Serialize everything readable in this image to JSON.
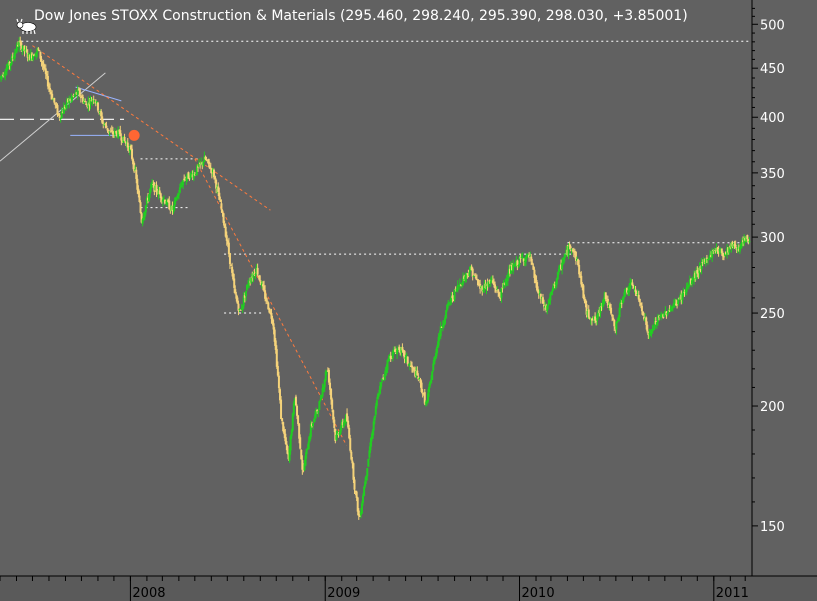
{
  "chart_data": {
    "type": "candlestick",
    "title": "Dow Jones STOXX Construction & Materials (295.460, 298.240, 295.390, 298.030, +3.85001)",
    "y_scale": "log",
    "ylim": [
      133,
      530
    ],
    "y_ticks": [
      150,
      200,
      250,
      300,
      350,
      400,
      450,
      500
    ],
    "x_range": [
      "2007-05-01",
      "2011-03-10"
    ],
    "x_ticks": [
      {
        "label": "2008",
        "date": "2008-01-01"
      },
      {
        "label": "2009",
        "date": "2009-01-01"
      },
      {
        "label": "2010",
        "date": "2010-01-01"
      },
      {
        "label": "2011",
        "date": "2011-01-01"
      }
    ],
    "colors": {
      "up": "#22cc22",
      "down": "#f5d37a",
      "background": "#616161"
    },
    "price_path": [
      [
        "2007-05-01",
        440
      ],
      [
        "2007-05-20",
        455
      ],
      [
        "2007-06-05",
        478
      ],
      [
        "2007-06-25",
        462
      ],
      [
        "2007-07-12",
        470
      ],
      [
        "2007-08-01",
        430
      ],
      [
        "2007-08-20",
        400
      ],
      [
        "2007-09-05",
        415
      ],
      [
        "2007-09-25",
        425
      ],
      [
        "2007-10-10",
        412
      ],
      [
        "2007-10-25",
        420
      ],
      [
        "2007-11-10",
        395
      ],
      [
        "2007-11-25",
        385
      ],
      [
        "2007-12-10",
        385
      ],
      [
        "2008-01-01",
        370
      ],
      [
        "2008-01-10",
        350
      ],
      [
        "2008-01-22",
        312
      ],
      [
        "2008-02-10",
        340
      ],
      [
        "2008-03-01",
        330
      ],
      [
        "2008-03-20",
        320
      ],
      [
        "2008-04-10",
        345
      ],
      [
        "2008-05-01",
        350
      ],
      [
        "2008-05-20",
        362
      ],
      [
        "2008-06-05",
        350
      ],
      [
        "2008-06-25",
        310
      ],
      [
        "2008-07-15",
        262
      ],
      [
        "2008-07-25",
        250
      ],
      [
        "2008-08-10",
        270
      ],
      [
        "2008-08-25",
        278
      ],
      [
        "2008-09-10",
        260
      ],
      [
        "2008-09-25",
        245
      ],
      [
        "2008-10-10",
        195
      ],
      [
        "2008-10-24",
        175
      ],
      [
        "2008-11-05",
        205
      ],
      [
        "2008-11-20",
        170
      ],
      [
        "2008-12-05",
        190
      ],
      [
        "2008-12-20",
        200
      ],
      [
        "2009-01-05",
        220
      ],
      [
        "2009-01-20",
        185
      ],
      [
        "2009-02-10",
        195
      ],
      [
        "2009-02-25",
        165
      ],
      [
        "2009-03-06",
        152
      ],
      [
        "2009-03-20",
        172
      ],
      [
        "2009-04-10",
        205
      ],
      [
        "2009-05-01",
        225
      ],
      [
        "2009-05-20",
        230
      ],
      [
        "2009-06-05",
        222
      ],
      [
        "2009-06-25",
        214
      ],
      [
        "2009-07-10",
        200
      ],
      [
        "2009-08-01",
        235
      ],
      [
        "2009-08-20",
        255
      ],
      [
        "2009-09-10",
        268
      ],
      [
        "2009-10-01",
        278
      ],
      [
        "2009-10-20",
        265
      ],
      [
        "2009-11-10",
        270
      ],
      [
        "2009-11-25",
        260
      ],
      [
        "2009-12-10",
        275
      ],
      [
        "2010-01-05",
        285
      ],
      [
        "2010-01-20",
        286
      ],
      [
        "2010-02-05",
        262
      ],
      [
        "2010-02-20",
        252
      ],
      [
        "2010-03-10",
        270
      ],
      [
        "2010-03-25",
        285
      ],
      [
        "2010-04-08",
        295
      ],
      [
        "2010-04-20",
        282
      ],
      [
        "2010-05-07",
        250
      ],
      [
        "2010-05-25",
        245
      ],
      [
        "2010-06-10",
        262
      ],
      [
        "2010-06-30",
        240
      ],
      [
        "2010-07-15",
        262
      ],
      [
        "2010-08-01",
        268
      ],
      [
        "2010-08-20",
        252
      ],
      [
        "2010-09-01",
        236
      ],
      [
        "2010-09-15",
        245
      ],
      [
        "2010-10-01",
        250
      ],
      [
        "2010-10-20",
        255
      ],
      [
        "2010-11-05",
        262
      ],
      [
        "2010-11-20",
        270
      ],
      [
        "2010-12-05",
        278
      ],
      [
        "2010-12-20",
        285
      ],
      [
        "2011-01-05",
        292
      ],
      [
        "2011-01-20",
        288
      ],
      [
        "2011-02-05",
        295
      ],
      [
        "2011-02-18",
        292
      ],
      [
        "2011-03-01",
        298
      ],
      [
        "2011-03-10",
        298
      ]
    ],
    "reference_lines": [
      {
        "style": "dotted",
        "from": [
          "2007-06-10",
          480
        ],
        "to": [
          "2011-03-10",
          480
        ]
      },
      {
        "style": "dotted",
        "from": [
          "2008-01-20",
          362
        ],
        "to": [
          "2008-05-10",
          362
        ]
      },
      {
        "style": "dotted",
        "from": [
          "2008-01-20",
          322
        ],
        "to": [
          "2008-04-20",
          322
        ]
      },
      {
        "style": "dotted",
        "from": [
          "2008-06-25",
          288
        ],
        "to": [
          "2010-04-20",
          288
        ]
      },
      {
        "style": "dotted",
        "from": [
          "2008-06-25",
          250
        ],
        "to": [
          "2008-09-05",
          250
        ]
      },
      {
        "style": "dotted",
        "from": [
          "2010-04-01",
          296
        ],
        "to": [
          "2011-03-10",
          296
        ]
      },
      {
        "style": "dashed",
        "from": [
          "2007-05-01",
          398
        ],
        "to": [
          "2007-12-20",
          398
        ]
      },
      {
        "style": "solid-grey",
        "from": [
          "2007-05-01",
          360
        ],
        "to": [
          "2007-11-15",
          445
        ]
      },
      {
        "style": "solid-blue",
        "from": [
          "2007-09-10",
          383
        ],
        "to": [
          "2007-12-15",
          383
        ]
      },
      {
        "style": "solid-blue",
        "from": [
          "2007-09-20",
          430
        ],
        "to": [
          "2007-12-15",
          416
        ]
      },
      {
        "style": "dashed-orange",
        "from": [
          "2007-07-01",
          475
        ],
        "to": [
          "2008-09-20",
          320
        ]
      },
      {
        "style": "dashed-orange",
        "from": [
          "2008-05-01",
          362
        ],
        "to": [
          "2009-02-10",
          182
        ]
      }
    ],
    "marker": {
      "shape": "circle",
      "color": "#ff6633",
      "at": [
        "2008-01-08",
        383
      ]
    }
  }
}
